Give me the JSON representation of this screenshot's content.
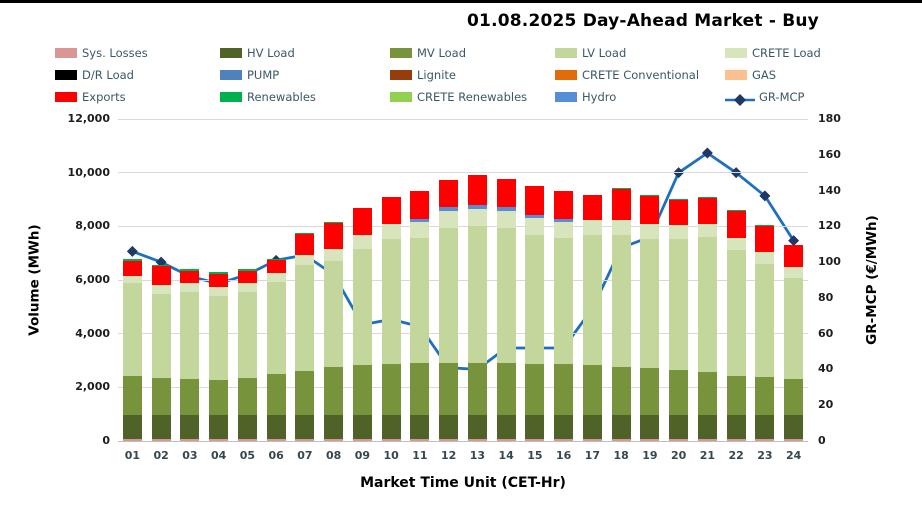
{
  "title": "01.08.2025  Day-Ahead Market - Buy",
  "colors": {
    "sys_losses": "#D99694",
    "hv_load": "#4F6228",
    "mv_load": "#77933C",
    "lv_load": "#C3D69B",
    "crete_load": "#D7E4BC",
    "dr_load": "#000000",
    "pump": "#4F81BD",
    "lignite": "#963D0B",
    "crete_conventional": "#E36C0A",
    "gas": "#FAC090",
    "exports": "#FF0000",
    "renewables": "#00B050",
    "crete_renewables": "#92D050",
    "hydro": "#558ED5",
    "gr_mcp_line": "#1F6FBF",
    "gr_mcp_marker": "#1F3864",
    "grid": "#D9D9D9",
    "legend_text": "#3A5866"
  },
  "legend": [
    {
      "label": "Sys. Losses",
      "color_key": "sys_losses",
      "kind": "swatch"
    },
    {
      "label": "HV Load",
      "color_key": "hv_load",
      "kind": "swatch"
    },
    {
      "label": "MV Load",
      "color_key": "mv_load",
      "kind": "swatch"
    },
    {
      "label": "LV Load",
      "color_key": "lv_load",
      "kind": "swatch"
    },
    {
      "label": "CRETE Load",
      "color_key": "crete_load",
      "kind": "swatch"
    },
    {
      "label": "D/R Load",
      "color_key": "dr_load",
      "kind": "swatch"
    },
    {
      "label": "PUMP",
      "color_key": "pump",
      "kind": "swatch"
    },
    {
      "label": "Lignite",
      "color_key": "lignite",
      "kind": "swatch"
    },
    {
      "label": "CRETE Conventional",
      "color_key": "crete_conventional",
      "kind": "swatch"
    },
    {
      "label": "GAS",
      "color_key": "gas",
      "kind": "swatch"
    },
    {
      "label": "Exports",
      "color_key": "exports",
      "kind": "swatch"
    },
    {
      "label": "Renewables",
      "color_key": "renewables",
      "kind": "swatch"
    },
    {
      "label": "CRETE Renewables",
      "color_key": "crete_renewables",
      "kind": "swatch"
    },
    {
      "label": "Hydro",
      "color_key": "hydro",
      "kind": "swatch"
    },
    {
      "label": "GR-MCP",
      "color_key": "gr_mcp_line",
      "kind": "line-marker"
    }
  ],
  "chart_data": {
    "type": "combo-stacked-bar-line",
    "categories": [
      "01",
      "02",
      "03",
      "04",
      "05",
      "06",
      "07",
      "08",
      "09",
      "10",
      "11",
      "12",
      "13",
      "14",
      "15",
      "16",
      "17",
      "18",
      "19",
      "20",
      "21",
      "22",
      "23",
      "24"
    ],
    "series": [
      {
        "name": "Sys. Losses",
        "color_key": "sys_losses",
        "values": [
          80,
          80,
          80,
          80,
          80,
          80,
          80,
          80,
          80,
          80,
          80,
          80,
          80,
          80,
          80,
          80,
          80,
          80,
          80,
          80,
          80,
          80,
          80,
          80
        ]
      },
      {
        "name": "HV Load",
        "color_key": "hv_load",
        "values": [
          900,
          900,
          900,
          900,
          900,
          900,
          900,
          900,
          900,
          900,
          900,
          900,
          900,
          900,
          900,
          900,
          900,
          900,
          900,
          900,
          900,
          900,
          900,
          900
        ]
      },
      {
        "name": "MV Load",
        "color_key": "mv_load",
        "values": [
          1430,
          1370,
          1320,
          1310,
          1360,
          1520,
          1640,
          1780,
          1865,
          1890,
          1910,
          1930,
          1925,
          1920,
          1900,
          1880,
          1840,
          1780,
          1750,
          1680,
          1580,
          1430,
          1420,
          1330
        ]
      },
      {
        "name": "LV Load",
        "color_key": "lv_load",
        "values": [
          3475,
          3130,
          3260,
          3120,
          3200,
          3410,
          3930,
          3950,
          4325,
          4660,
          4680,
          5030,
          5100,
          5030,
          4800,
          4700,
          4850,
          4930,
          4800,
          4860,
          5030,
          4690,
          4200,
          3770
        ]
      },
      {
        "name": "CRETE Load",
        "color_key": "crete_load",
        "values": [
          250,
          350,
          330,
          330,
          340,
          360,
          400,
          450,
          520,
          560,
          600,
          620,
          640,
          630,
          620,
          600,
          580,
          560,
          540,
          520,
          500,
          470,
          440,
          420
        ]
      },
      {
        "name": "Hydro",
        "color_key": "hydro",
        "values": [
          0,
          0,
          0,
          0,
          0,
          0,
          0,
          0,
          0,
          0,
          110,
          150,
          160,
          150,
          140,
          120,
          0,
          0,
          0,
          0,
          0,
          0,
          0,
          0
        ]
      },
      {
        "name": "Exports",
        "color_key": "exports",
        "values": [
          590,
          690,
          460,
          490,
          470,
          480,
          770,
          960,
          1010,
          1000,
          1050,
          1030,
          1120,
          1070,
          1050,
          1050,
          900,
          1130,
          1050,
          950,
          950,
          1010,
          990,
          800
        ]
      },
      {
        "name": "Renewables",
        "color_key": "renewables",
        "values": [
          70,
          30,
          60,
          50,
          60,
          40,
          40,
          40,
          0,
          0,
          0,
          0,
          0,
          0,
          0,
          0,
          0,
          50,
          40,
          40,
          40,
          40,
          30,
          0
        ]
      }
    ],
    "line_series": {
      "name": "GR-MCP",
      "color_key": "gr_mcp_line",
      "marker_color_key": "gr_mcp_marker",
      "values": [
        106,
        100,
        92,
        88,
        93,
        101,
        104,
        93,
        65,
        68,
        64,
        41,
        40,
        52,
        52,
        52,
        74,
        108,
        114,
        150,
        161,
        150,
        137,
        112
      ]
    },
    "left_axis": {
      "label": "Volume (MWh)",
      "min": 0,
      "max": 12000,
      "tick_values": [
        0,
        2000,
        4000,
        6000,
        8000,
        10000,
        12000
      ],
      "tick_labels": [
        "0",
        "2,000",
        "4,000",
        "6,000",
        "8,000",
        "10,000",
        "12,000"
      ]
    },
    "right_axis": {
      "label": "GR-MCP (€/MWh)",
      "min": 0,
      "max": 180,
      "tick_values": [
        0,
        20,
        40,
        60,
        80,
        100,
        120,
        140,
        160,
        180
      ],
      "tick_labels": [
        "0",
        "20",
        "40",
        "60",
        "80",
        "100",
        "120",
        "140",
        "160",
        "180"
      ]
    },
    "x_axis": {
      "label": "Market Time Unit (CET-Hr)"
    },
    "grid": true,
    "legend_position": "top"
  }
}
